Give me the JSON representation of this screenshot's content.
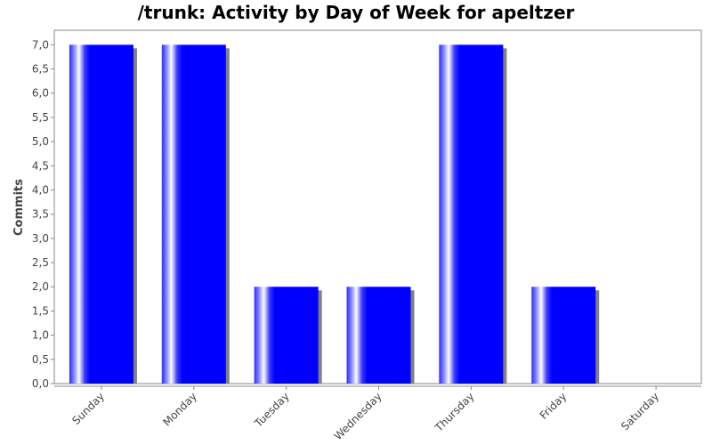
{
  "chart_data": {
    "type": "bar",
    "title": "/trunk: Activity by Day of Week for apeltzer",
    "xlabel": "",
    "ylabel": "Commits",
    "categories": [
      "Sunday",
      "Monday",
      "Tuesday",
      "Wednesday",
      "Thursday",
      "Friday",
      "Saturday"
    ],
    "values": [
      7,
      7,
      2,
      2,
      7,
      2,
      0
    ],
    "ylim": [
      0,
      7.3
    ],
    "yticks": [
      "0,0",
      "0,5",
      "1,0",
      "1,5",
      "2,0",
      "2,5",
      "3,0",
      "3,5",
      "4,0",
      "4,5",
      "5,0",
      "5,5",
      "6,0",
      "6,5",
      "7,0"
    ],
    "grid": false,
    "legend": "none",
    "bar_color": "#0000ff",
    "bar_highlight_color": "#ffffff",
    "shadow_color": "#808080"
  }
}
